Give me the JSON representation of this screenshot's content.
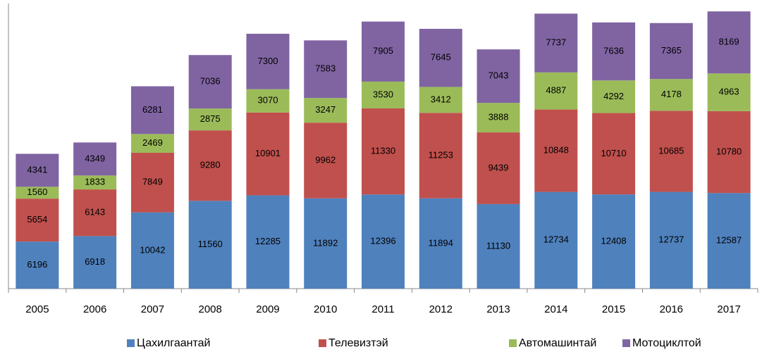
{
  "chart_data": {
    "type": "stacked_bar",
    "categories": [
      "2005",
      "2006",
      "2007",
      "2008",
      "2009",
      "2010",
      "2011",
      "2012",
      "2013",
      "2014",
      "2015",
      "2016",
      "2017"
    ],
    "series": [
      {
        "name": "Цахилгаантай",
        "color": "#4f81bd",
        "values": [
          6196,
          6918,
          10042,
          11560,
          12285,
          11892,
          12396,
          11894,
          11130,
          12734,
          12408,
          12737,
          12587
        ]
      },
      {
        "name": "Телевизтэй",
        "color": "#c0504d",
        "values": [
          5654,
          6143,
          7849,
          9280,
          10901,
          9962,
          11330,
          11253,
          9439,
          10848,
          10710,
          10685,
          10780
        ]
      },
      {
        "name": "Автомашинтай",
        "color": "#9bbb59",
        "values": [
          1560,
          1833,
          2469,
          2875,
          3070,
          3247,
          3530,
          3412,
          3888,
          4887,
          4292,
          4178,
          4963
        ]
      },
      {
        "name": "Мотоциклтой",
        "color": "#8064a2",
        "values": [
          4341,
          4349,
          6281,
          7036,
          7300,
          7583,
          7905,
          7645,
          7043,
          7737,
          7636,
          7365,
          8169
        ]
      }
    ],
    "ylim": [
      0,
      38000
    ],
    "legend": "bottom"
  }
}
